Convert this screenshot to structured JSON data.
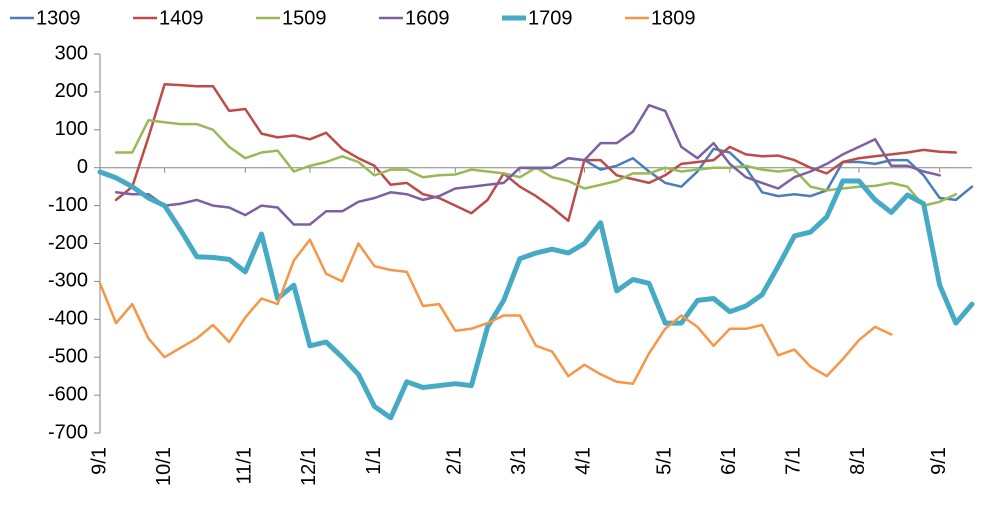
{
  "chart_data": {
    "type": "line",
    "categories": [
      "9/1",
      null,
      null,
      null,
      "10/1",
      null,
      null,
      null,
      null,
      "11/1",
      null,
      null,
      null,
      "12/1",
      null,
      null,
      null,
      "1/1",
      null,
      null,
      null,
      null,
      "2/1",
      null,
      null,
      null,
      "3/1",
      null,
      null,
      null,
      "4/1",
      null,
      null,
      null,
      null,
      "5/1",
      null,
      null,
      null,
      "6/1",
      null,
      null,
      null,
      "7/1",
      null,
      null,
      null,
      "8/1",
      null,
      null,
      null,
      null,
      "9/1",
      null,
      null
    ],
    "series": [
      {
        "name": "1309",
        "color": "#4a7ebb",
        "width": 2.5,
        "values": [
          null,
          null,
          null,
          null,
          null,
          null,
          null,
          null,
          null,
          null,
          null,
          null,
          null,
          null,
          null,
          null,
          null,
          null,
          null,
          null,
          null,
          null,
          null,
          null,
          null,
          null,
          0,
          -2,
          0,
          25,
          20,
          -5,
          5,
          25,
          -10,
          -40,
          -50,
          -10,
          50,
          40,
          0,
          -65,
          -75,
          -70,
          -75,
          -60,
          15,
          15,
          10,
          20,
          20,
          -20,
          -80,
          -85,
          -50
        ]
      },
      {
        "name": "1409",
        "color": "#be4b48",
        "width": 2.5,
        "values": [
          null,
          -85,
          -50,
          80,
          220,
          218,
          215,
          215,
          150,
          155,
          90,
          80,
          85,
          75,
          92,
          50,
          25,
          5,
          -45,
          -40,
          -70,
          -80,
          -100,
          -120,
          -85,
          -15,
          -50,
          -75,
          -105,
          -140,
          20,
          20,
          -20,
          -30,
          -40,
          -20,
          10,
          15,
          20,
          55,
          35,
          30,
          32,
          20,
          0,
          -15,
          15,
          25,
          30,
          35,
          40,
          47,
          42,
          40,
          null
        ]
      },
      {
        "name": "1509",
        "color": "#98b954",
        "width": 2.5,
        "values": [
          null,
          40,
          40,
          125,
          120,
          115,
          115,
          100,
          55,
          25,
          40,
          45,
          -10,
          5,
          15,
          30,
          15,
          -20,
          -5,
          -5,
          -25,
          -20,
          -18,
          -5,
          -10,
          -15,
          -25,
          0,
          -25,
          -35,
          -55,
          -45,
          -35,
          -15,
          -15,
          0,
          -10,
          -5,
          0,
          0,
          5,
          -5,
          -10,
          -5,
          -50,
          -60,
          -55,
          -50,
          -48,
          -40,
          -50,
          -100,
          -90,
          -70,
          null
        ]
      },
      {
        "name": "1609",
        "color": "#7d60a0",
        "width": 2.5,
        "values": [
          null,
          -65,
          -70,
          -70,
          -100,
          -95,
          -85,
          -100,
          -105,
          -125,
          -100,
          -105,
          -150,
          -150,
          -115,
          -115,
          -90,
          -80,
          -65,
          -70,
          -85,
          -75,
          -55,
          -50,
          -45,
          -40,
          0,
          0,
          0,
          25,
          20,
          65,
          65,
          95,
          165,
          150,
          55,
          25,
          65,
          10,
          -25,
          -40,
          -55,
          -25,
          -10,
          10,
          35,
          55,
          75,
          5,
          5,
          -10,
          -20,
          null,
          null
        ]
      },
      {
        "name": "1709",
        "color": "#46aac5",
        "width": 5,
        "values": [
          -11,
          -27,
          -50,
          -80,
          -100,
          -165,
          -235,
          -237,
          -242,
          -275,
          -175,
          -345,
          -310,
          -470,
          -460,
          -500,
          -545,
          -630,
          -660,
          -565,
          -580,
          -575,
          -570,
          -575,
          -420,
          -350,
          -240,
          -225,
          -215,
          -225,
          -200,
          -145,
          -325,
          -295,
          -305,
          -410,
          -410,
          -350,
          -345,
          -380,
          -365,
          -335,
          -260,
          -180,
          -170,
          -130,
          -35,
          -35,
          -85,
          -118,
          -72,
          -95,
          -310,
          -410,
          -360
        ]
      },
      {
        "name": "1809",
        "color": "#f79646",
        "width": 2.5,
        "values": [
          -305,
          -410,
          -360,
          -450,
          -500,
          -475,
          -450,
          -415,
          -460,
          -395,
          -345,
          -360,
          -245,
          -190,
          -280,
          -300,
          -200,
          -260,
          -270,
          -275,
          -365,
          -360,
          -430,
          -425,
          -410,
          -390,
          -390,
          -470,
          -485,
          -550,
          -520,
          -545,
          -565,
          -570,
          -490,
          -425,
          -390,
          -420,
          -470,
          -425,
          -425,
          -415,
          -495,
          -480,
          -525,
          -550,
          -505,
          -455,
          -420,
          -440,
          null,
          null,
          null,
          null,
          null
        ]
      }
    ],
    "ylim": [
      -700,
      300
    ],
    "yticks": [
      -700,
      -600,
      -500,
      -400,
      -300,
      -200,
      -100,
      0,
      100,
      200,
      300
    ],
    "legend": "top"
  }
}
